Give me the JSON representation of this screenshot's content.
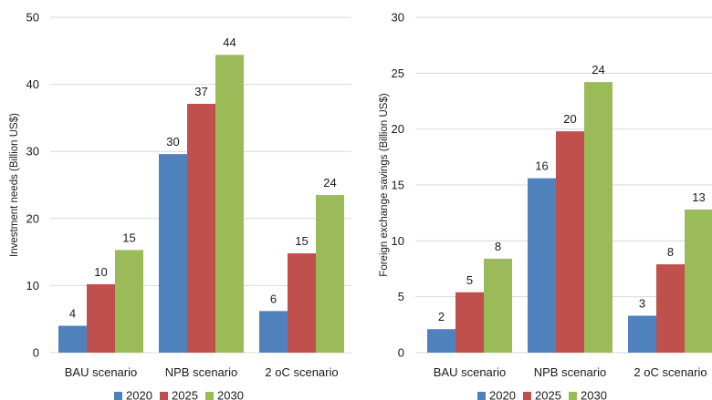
{
  "chart_data": [
    {
      "type": "bar",
      "title": "",
      "xlabel": "",
      "ylabel": "Investment needs (Billion US$)",
      "ylim": [
        0,
        50
      ],
      "yticks": [
        0,
        10,
        20,
        30,
        40,
        50
      ],
      "grid": true,
      "legend_position": "bottom",
      "categories": [
        "BAU scenario",
        "NPB scenario",
        "2 oC scenario"
      ],
      "series": [
        {
          "name": "2020",
          "color": "#4f81bd",
          "values": [
            4,
            29.6,
            6.2
          ],
          "labels": [
            "4",
            "30",
            "6"
          ]
        },
        {
          "name": "2025",
          "color": "#c0504d",
          "values": [
            10.2,
            37.1,
            14.8
          ],
          "labels": [
            "10",
            "37",
            "15"
          ]
        },
        {
          "name": "2030",
          "color": "#9bbb59",
          "values": [
            15.3,
            44.4,
            23.5
          ],
          "labels": [
            "15",
            "44",
            "24"
          ]
        }
      ]
    },
    {
      "type": "bar",
      "title": "",
      "xlabel": "",
      "ylabel": "Foreign exchange savings (Billion US$)",
      "ylim": [
        0,
        30
      ],
      "yticks": [
        0,
        5,
        10,
        15,
        20,
        25,
        30
      ],
      "grid": true,
      "legend_position": "bottom",
      "categories": [
        "BAU scenario",
        "NPB scenario",
        "2 oC scenario"
      ],
      "series": [
        {
          "name": "2020",
          "color": "#4f81bd",
          "values": [
            2.1,
            15.6,
            3.3
          ],
          "labels": [
            "2",
            "16",
            "3"
          ]
        },
        {
          "name": "2025",
          "color": "#c0504d",
          "values": [
            5.4,
            19.8,
            7.9
          ],
          "labels": [
            "5",
            "20",
            "8"
          ]
        },
        {
          "name": "2030",
          "color": "#9bbb59",
          "values": [
            8.4,
            24.2,
            12.8
          ],
          "labels": [
            "8",
            "24",
            "13"
          ]
        }
      ]
    }
  ]
}
